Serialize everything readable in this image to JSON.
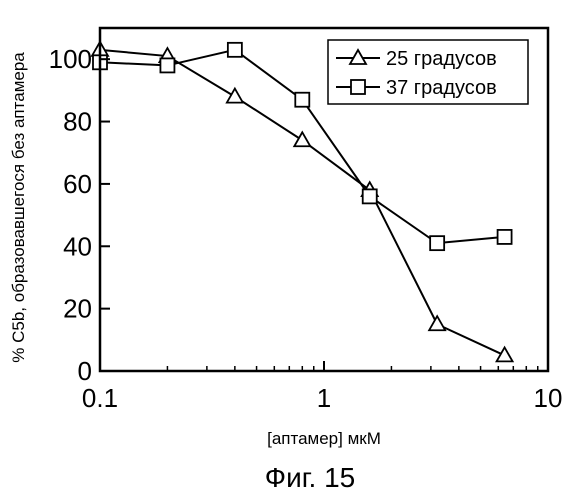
{
  "chart_data": {
    "type": "line",
    "xlabel": "[аптамер] мкМ",
    "ylabel": "% C5b, образовавшегося без аптамера",
    "xscale": "log",
    "xlim": [
      0.1,
      10
    ],
    "ylim": [
      0,
      110
    ],
    "xticks": [
      0.1,
      1,
      10
    ],
    "xtick_labels": [
      "0.1",
      "1",
      "10"
    ],
    "yticks": [
      0,
      20,
      40,
      60,
      80,
      100
    ],
    "ytick_labels": [
      "0",
      "20",
      "40",
      "60",
      "80",
      "100"
    ],
    "grid": false,
    "legend_position": "top-right",
    "series": [
      {
        "name": "25 градусов",
        "marker": "triangle",
        "x": [
          0.1,
          0.2,
          0.4,
          0.8,
          1.6,
          3.2,
          6.4
        ],
        "y": [
          103,
          101,
          88,
          74,
          58,
          15,
          5
        ]
      },
      {
        "name": "37 градусов",
        "marker": "square",
        "x": [
          0.1,
          0.2,
          0.4,
          0.8,
          1.6,
          3.2,
          6.4
        ],
        "y": [
          99,
          98,
          103,
          87,
          56,
          41,
          43
        ]
      }
    ]
  },
  "caption": "Фиг. 15"
}
